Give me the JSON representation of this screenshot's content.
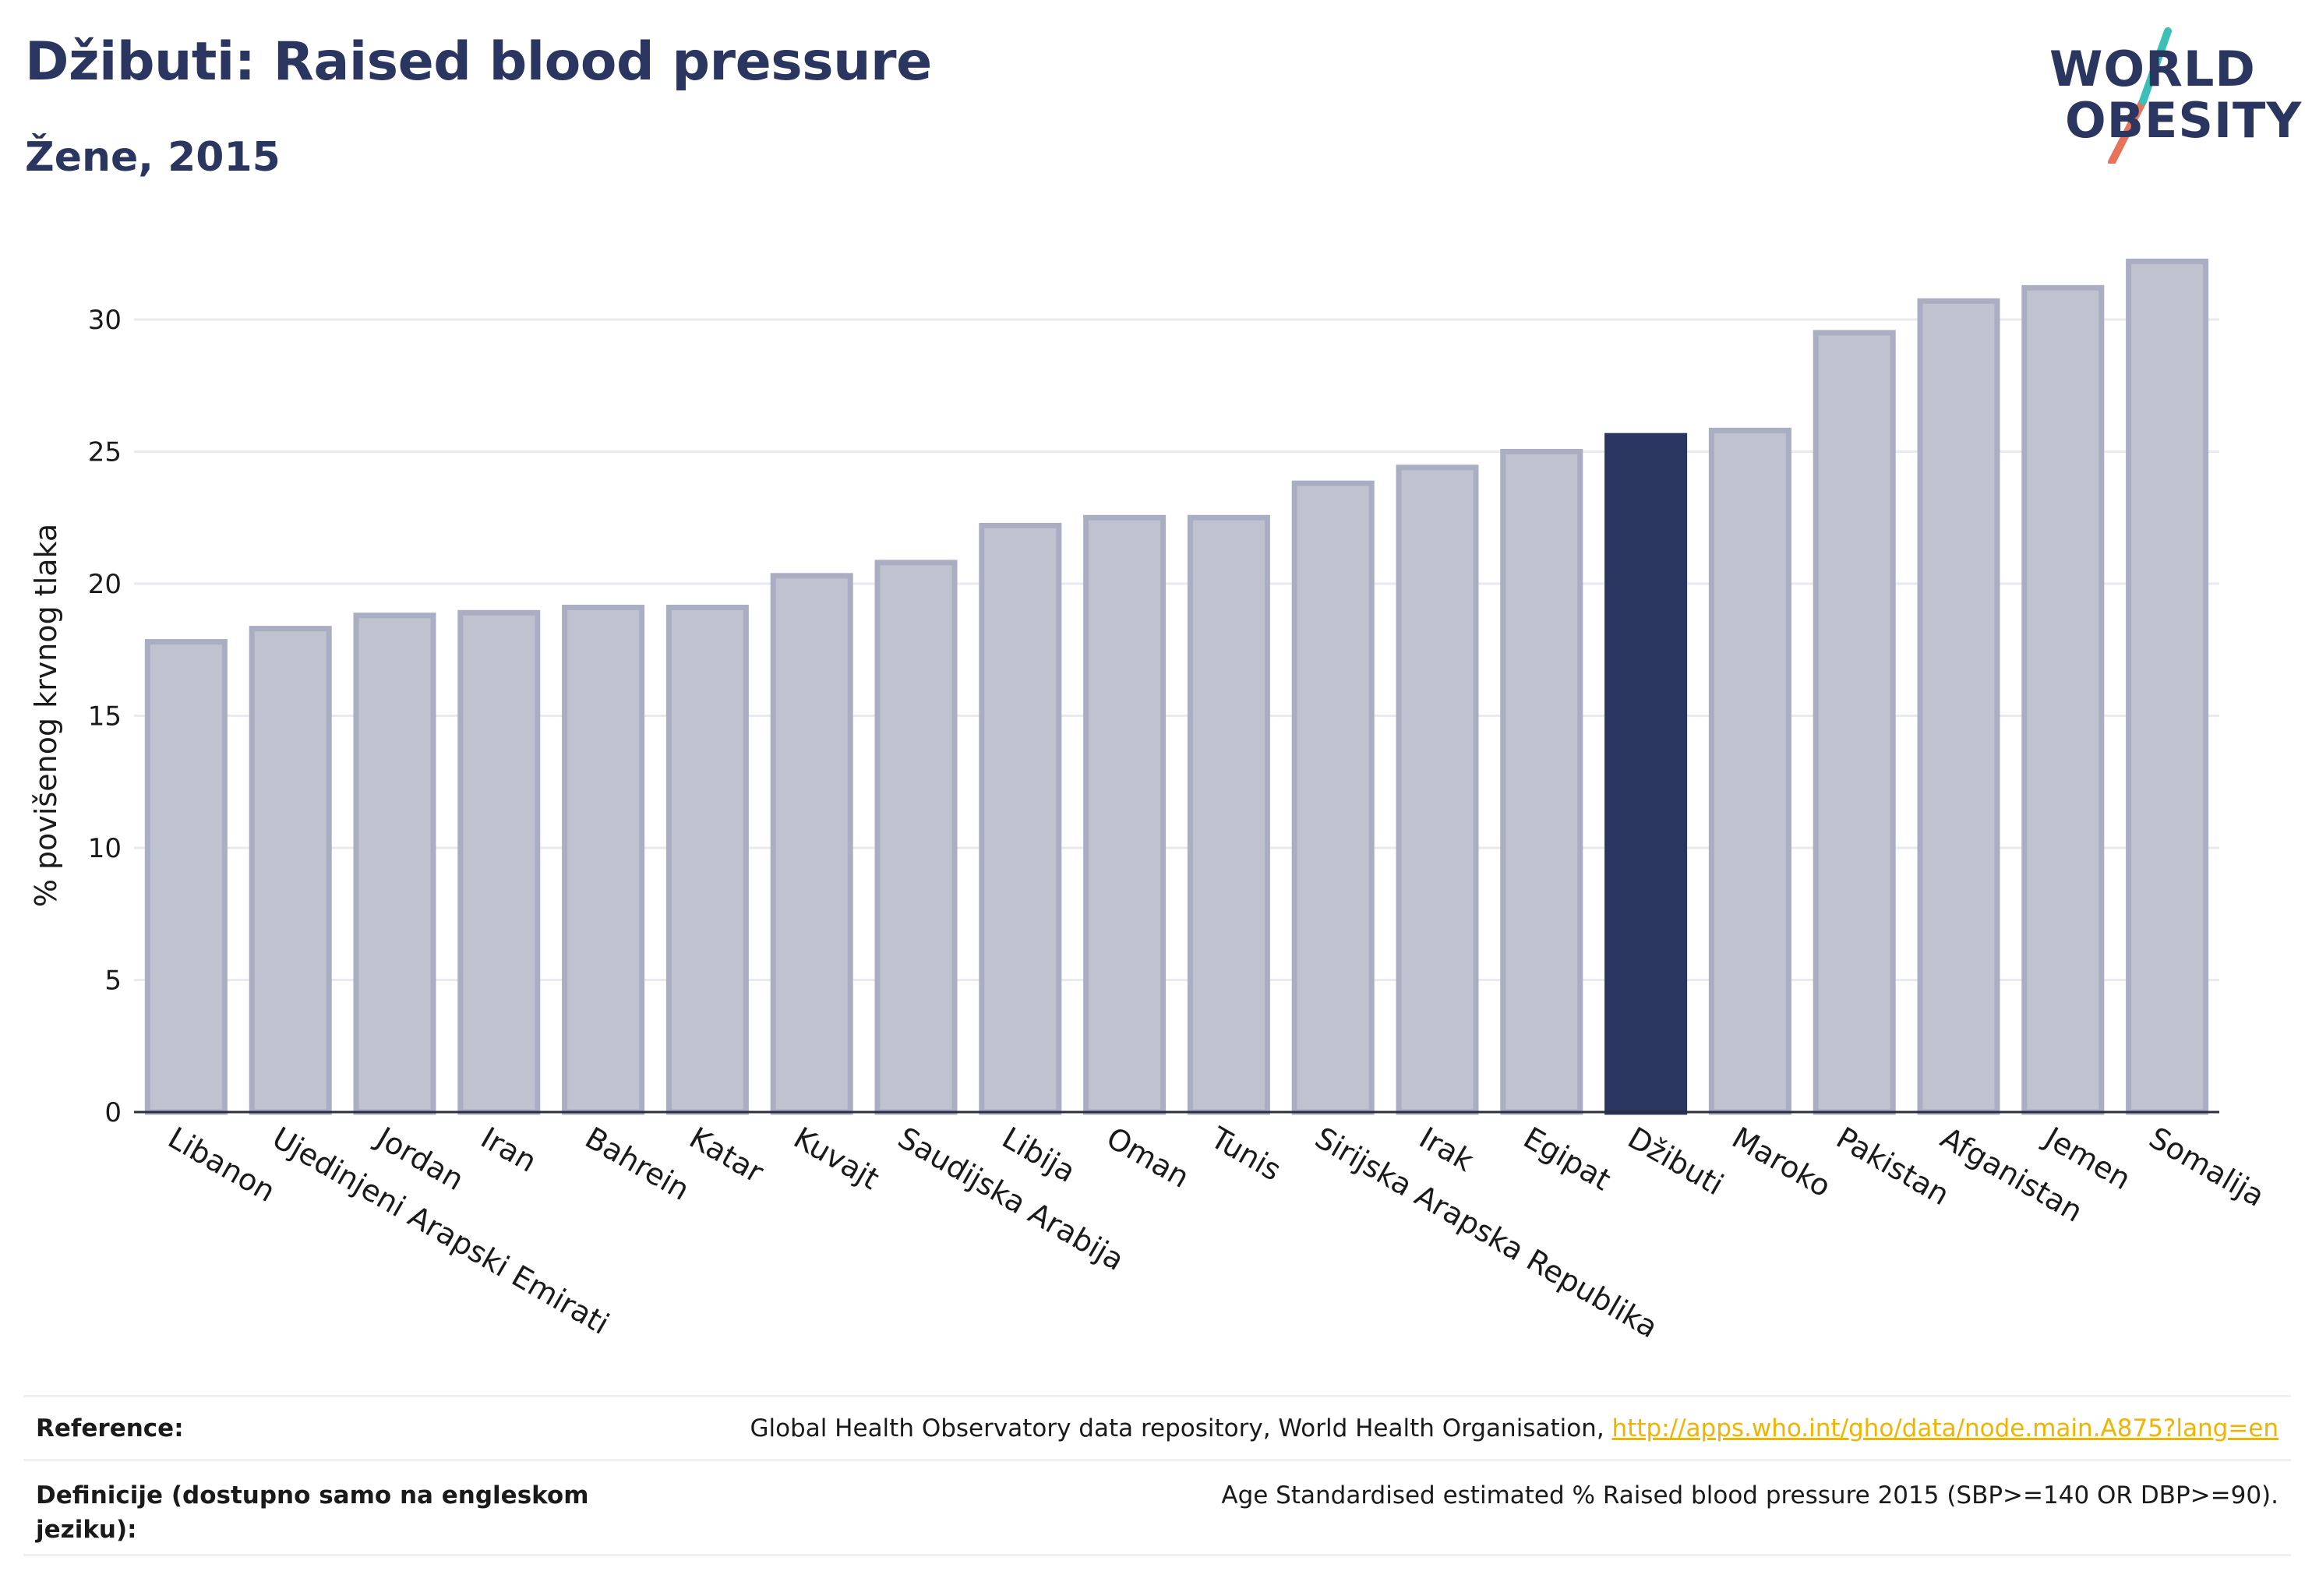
{
  "header": {
    "title": "Džibuti: Raised blood pressure",
    "subtitle": "Žene, 2015"
  },
  "logo": {
    "line1": "WORLD",
    "line2": "OBESITY"
  },
  "colors": {
    "highlight": "#2a3660",
    "bar_fill": "#bfc3cf",
    "bar_stroke": "#a9aec2",
    "logo_teal": "#3bbfb6",
    "logo_coral": "#e8735a",
    "link": "#f0b400"
  },
  "chart_data": {
    "type": "bar",
    "title": "Džibuti: Raised blood pressure",
    "subtitle": "Žene, 2015",
    "xlabel": "",
    "ylabel": "% povišenog krvnog tlaka",
    "ylim": [
      0,
      33
    ],
    "yticks": [
      0,
      5,
      10,
      15,
      20,
      25,
      30
    ],
    "grid": true,
    "highlight": "Džibuti",
    "categories": [
      "Libanon",
      "Ujedinjeni Arapski Emirati",
      "Jordan",
      "Iran",
      "Bahrein",
      "Katar",
      "Kuvajt",
      "Saudijska Arabija",
      "Libija",
      "Oman",
      "Tunis",
      "Sirijska Arapska Republika",
      "Irak",
      "Egipat",
      "Džibuti",
      "Maroko",
      "Pakistan",
      "Afganistan",
      "Jemen",
      "Somalija"
    ],
    "values": [
      17.8,
      18.3,
      18.8,
      18.9,
      19.1,
      19.1,
      20.3,
      20.8,
      22.2,
      22.5,
      22.5,
      23.8,
      24.4,
      25.0,
      25.6,
      25.8,
      29.5,
      30.7,
      31.2,
      32.2
    ]
  },
  "footer": {
    "reference_label": "Reference:",
    "reference_text": "Global Health Observatory data repository, World Health Organisation,",
    "reference_link": "http://apps.who.int/gho/data/node.main.A875?lang=en",
    "definition_label": "Definicije (dostupno samo na engleskom jeziku):",
    "definition_text": "Age Standardised estimated % Raised blood pressure 2015 (SBP>=140 OR DBP>=90)."
  }
}
